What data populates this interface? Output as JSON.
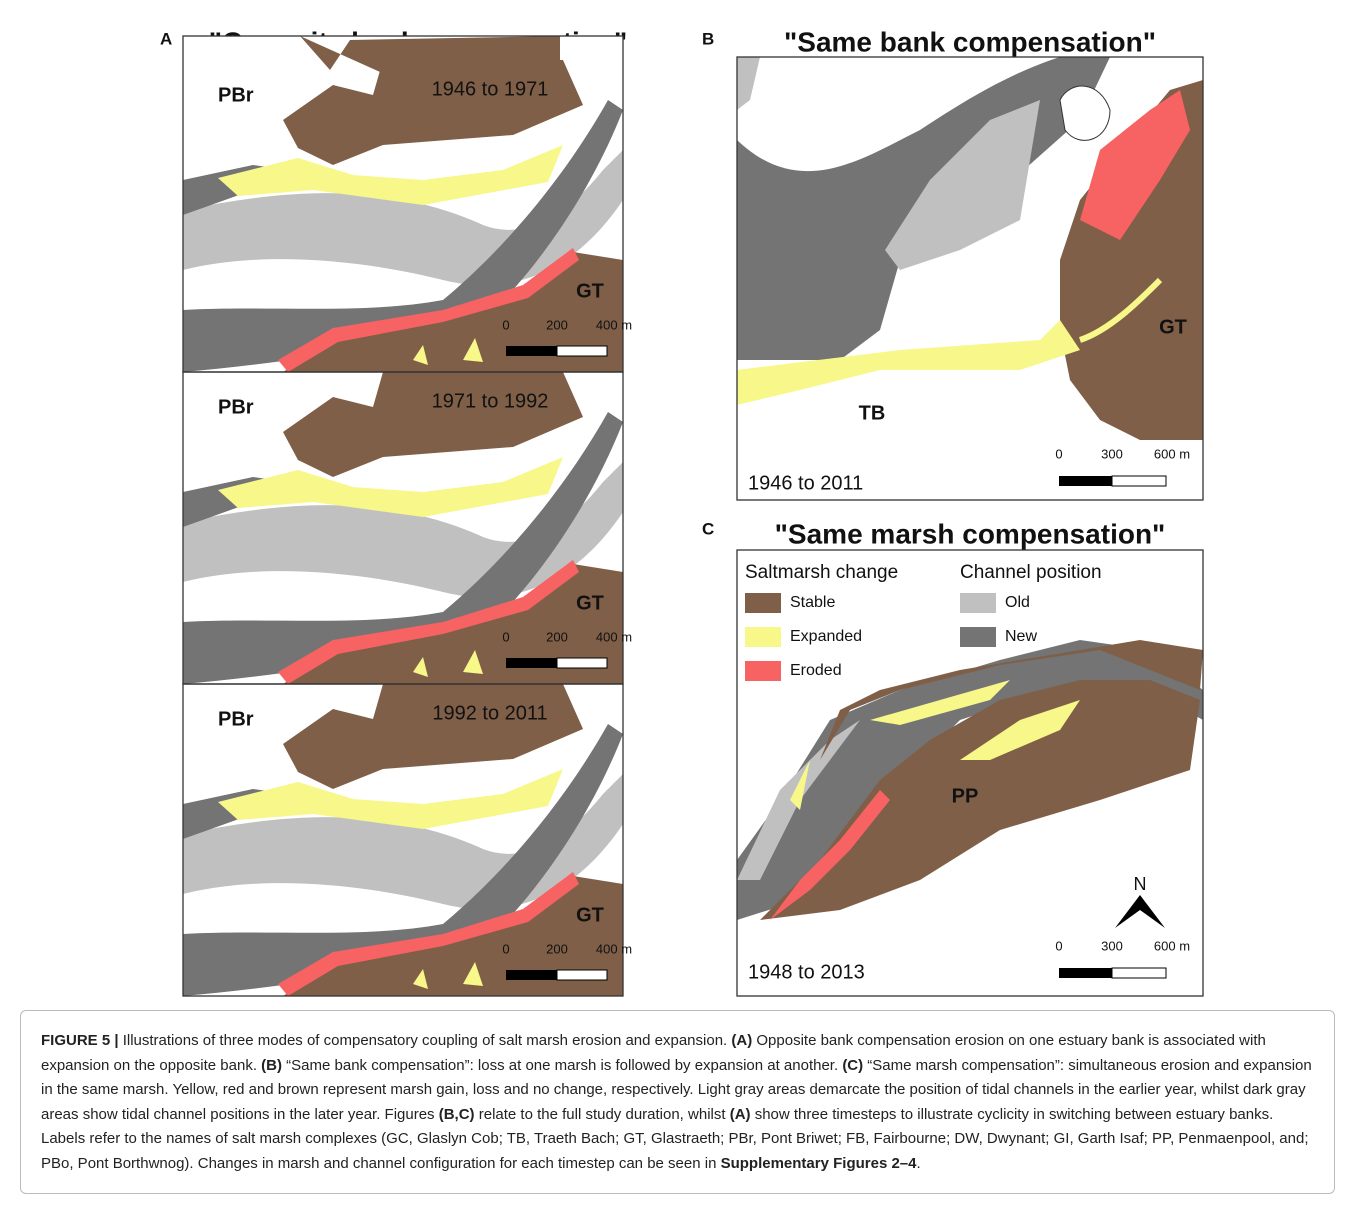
{
  "figure": {
    "panels": [
      {
        "letter": "A",
        "title": "\"Opposite bank compensation\"",
        "maps": [
          {
            "period": "1946 to 1971",
            "labels": [
              "PBr",
              "GT"
            ],
            "scale": [
              "0",
              "200",
              "400 m"
            ]
          },
          {
            "period": "1971 to 1992",
            "labels": [
              "PBr",
              "GT"
            ],
            "scale": [
              "0",
              "200",
              "400 m"
            ]
          },
          {
            "period": "1992 to 2011",
            "labels": [
              "PBr",
              "GT"
            ],
            "scale": [
              "0",
              "200",
              "400 m"
            ]
          }
        ]
      },
      {
        "letter": "B",
        "title": "\"Same bank compensation\"",
        "period": "1946 to 2011",
        "labels": [
          "GT",
          "TB"
        ],
        "scale": [
          "0",
          "300",
          "600 m"
        ]
      },
      {
        "letter": "C",
        "title": "\"Same marsh compensation\"",
        "period": "1948 to 2013",
        "labels": [
          "PP"
        ],
        "north": "N",
        "scale": [
          "0",
          "300",
          "600 m"
        ],
        "legend": {
          "groups": [
            {
              "title": "Saltmarsh change",
              "items": [
                {
                  "label": "Stable",
                  "color": "#7f5f48"
                },
                {
                  "label": "Expanded",
                  "color": "#f7f78a"
                },
                {
                  "label": "Eroded",
                  "color": "#f76262"
                }
              ]
            },
            {
              "title": "Channel position",
              "items": [
                {
                  "label": "Old",
                  "color": "#c0c0c0"
                },
                {
                  "label": "New",
                  "color": "#747474"
                }
              ]
            }
          ]
        }
      }
    ]
  },
  "caption": {
    "segments": [
      {
        "text": "FIGURE 5 |",
        "bold": true
      },
      {
        "text": " Illustrations of three modes of compensatory coupling of salt marsh erosion and expansion. ",
        "bold": false
      },
      {
        "text": "(A)",
        "bold": true
      },
      {
        "text": " Opposite bank compensation erosion on one estuary bank is associated with expansion on the opposite bank. ",
        "bold": false
      },
      {
        "text": "(B)",
        "bold": true
      },
      {
        "text": " “Same bank compensation”: loss at one marsh is followed by expansion at another. ",
        "bold": false
      },
      {
        "text": "(C)",
        "bold": true
      },
      {
        "text": " “Same marsh compensation”: simultaneous erosion and expansion in the same marsh. Yellow, red and brown represent marsh gain, loss and no change, respectively. Light gray areas demarcate the position of tidal channels in the earlier year, whilst dark gray areas show tidal channel positions in the later year. Figures ",
        "bold": false
      },
      {
        "text": "(B,C)",
        "bold": true
      },
      {
        "text": " relate to the full study duration, whilst ",
        "bold": false
      },
      {
        "text": "(A)",
        "bold": true
      },
      {
        "text": " show three timesteps to illustrate cyclicity in switching between estuary banks. Labels refer to the names of salt marsh complexes (GC, Glaslyn Cob; TB, Traeth Bach; GT, Glastraeth; PBr, Pont Briwet; FB, Fairbourne; DW, Dwynant; GI, Garth Isaf; PP, Penmaenpool, and; PBo, Pont Borthwnog). Changes in marsh and channel configuration for each timestep can be seen in ",
        "bold": false
      },
      {
        "text": "Supplementary Figures 2–4",
        "bold": true
      },
      {
        "text": ".",
        "bold": false
      }
    ]
  }
}
